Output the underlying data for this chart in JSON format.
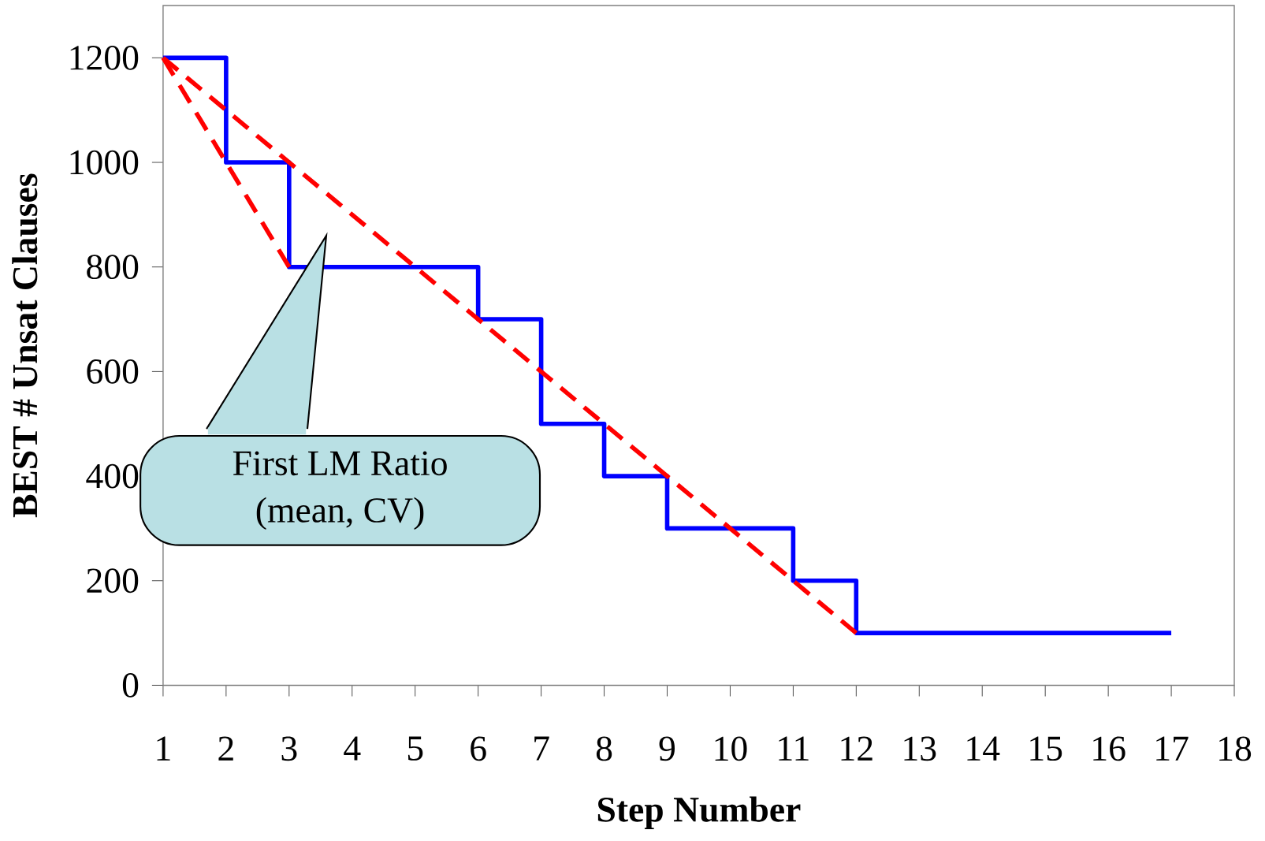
{
  "chart_data": {
    "type": "step",
    "xlabel": "Step Number",
    "ylabel": "BEST # Unsat Clauses",
    "xlim": [
      1,
      18
    ],
    "xticks": [
      1,
      2,
      3,
      4,
      5,
      6,
      7,
      8,
      9,
      10,
      11,
      12,
      13,
      14,
      15,
      16,
      17,
      18
    ],
    "ylim": [
      0,
      1300
    ],
    "yticks": [
      0,
      200,
      400,
      600,
      800,
      1000,
      1200
    ],
    "grid": false,
    "marker": "none",
    "series": [
      {
        "color": "#0000ff",
        "line_style": "solid",
        "x": [
          1,
          2,
          3,
          6,
          7,
          8,
          9,
          11,
          12,
          17
        ],
        "values": [
          1200,
          1000,
          800,
          700,
          500,
          400,
          300,
          200,
          100,
          100
        ]
      },
      {
        "type": "line",
        "color": "#ff0000",
        "line_style": "dashed",
        "x": [
          1,
          3
        ],
        "values": [
          1200,
          800
        ]
      },
      {
        "type": "line",
        "color": "#ff0000",
        "line_style": "dashed",
        "x": [
          1,
          12
        ],
        "values": [
          1200,
          100
        ]
      }
    ],
    "annotations": [
      "First LM Ratio\n(mean, CV)"
    ]
  }
}
